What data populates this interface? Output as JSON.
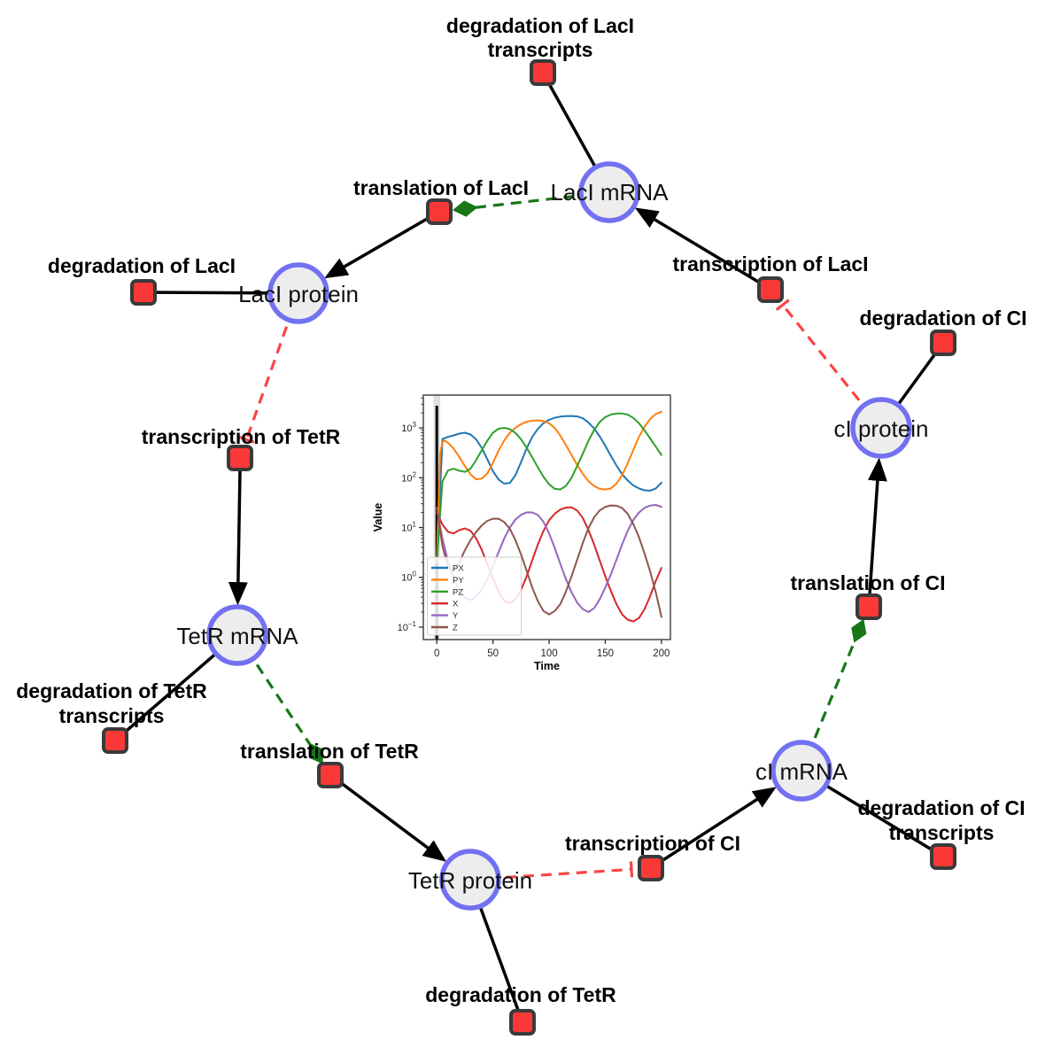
{
  "diagram": {
    "title": "repressilator reaction network",
    "species": [
      {
        "label": "LacI mRNA"
      },
      {
        "label": "LacI protein"
      },
      {
        "label": "cI protein"
      },
      {
        "label": "TetR mRNA"
      },
      {
        "label": "cI mRNA"
      },
      {
        "label": "TetR protein"
      }
    ],
    "reactions": [
      {
        "lines": [
          "degradation of LacI",
          "transcripts"
        ]
      },
      {
        "lines": [
          "translation of LacI"
        ]
      },
      {
        "lines": [
          "degradation of LacI"
        ]
      },
      {
        "lines": [
          "transcription of LacI"
        ]
      },
      {
        "lines": [
          "degradation of CI"
        ]
      },
      {
        "lines": [
          "transcription of TetR"
        ]
      },
      {
        "lines": [
          "translation of CI"
        ]
      },
      {
        "lines": [
          "degradation of TetR",
          "transcripts"
        ]
      },
      {
        "lines": [
          "translation of TetR"
        ]
      },
      {
        "lines": [
          "degradation of CI",
          "transcripts"
        ]
      },
      {
        "lines": [
          "transcription of CI"
        ]
      },
      {
        "lines": [
          "degradation of TetR"
        ]
      }
    ],
    "edges": [
      {
        "source": "LacI mRNA",
        "target": "degradation of LacI transcripts",
        "type": "consumption-line"
      },
      {
        "source": "transcription of LacI",
        "target": "LacI mRNA",
        "type": "production-arrow"
      },
      {
        "source": "LacI mRNA",
        "target": "translation of LacI",
        "type": "modifier-green-dashed"
      },
      {
        "source": "translation of LacI",
        "target": "LacI protein",
        "type": "production-arrow"
      },
      {
        "source": "LacI protein",
        "target": "degradation of LacI",
        "type": "consumption-line"
      },
      {
        "source": "LacI protein",
        "target": "transcription of TetR",
        "type": "inhibition-red-dashed"
      },
      {
        "source": "transcription of TetR",
        "target": "TetR mRNA",
        "type": "production-arrow"
      },
      {
        "source": "TetR mRNA",
        "target": "degradation of TetR transcripts",
        "type": "consumption-line"
      },
      {
        "source": "TetR mRNA",
        "target": "translation of TetR",
        "type": "modifier-green-dashed"
      },
      {
        "source": "translation of TetR",
        "target": "TetR protein",
        "type": "production-arrow"
      },
      {
        "source": "TetR protein",
        "target": "degradation of TetR",
        "type": "consumption-line"
      },
      {
        "source": "TetR protein",
        "target": "transcription of CI",
        "type": "inhibition-red-dashed"
      },
      {
        "source": "transcription of CI",
        "target": "cI mRNA",
        "type": "production-arrow"
      },
      {
        "source": "cI mRNA",
        "target": "degradation of CI transcripts",
        "type": "consumption-line"
      },
      {
        "source": "cI mRNA",
        "target": "translation of CI",
        "type": "modifier-green-dashed"
      },
      {
        "source": "translation of CI",
        "target": "cI protein",
        "type": "production-arrow"
      },
      {
        "source": "cI protein",
        "target": "degradation of CI",
        "type": "consumption-line"
      },
      {
        "source": "cI protein",
        "target": "transcription of LacI",
        "type": "inhibition-red-dashed"
      }
    ],
    "colors": {
      "species_fill": "#ededed",
      "species_stroke": "#7271f2",
      "reaction_fill": "#fb3838",
      "reaction_stroke": "#3a3a3a",
      "edge_black": "#000000",
      "edge_modifier": "#177717",
      "edge_inhibition": "#f84545"
    }
  },
  "chart_data": {
    "type": "line",
    "title": "",
    "xlabel": "Time",
    "ylabel": "Value",
    "x_ticks": [
      0,
      50,
      100,
      150,
      200
    ],
    "y_scale": "log",
    "y_tick_exponents": [
      -1,
      0,
      1,
      2,
      3
    ],
    "xlim": [
      -12,
      208
    ],
    "ylim_log10": [
      -1.25,
      3.66
    ],
    "grid": false,
    "legend_position": "lower-left",
    "event_line_x": 0,
    "series": [
      {
        "name": "PX",
        "color": "#1f77b4",
        "points": [
          [
            0,
            2
          ],
          [
            5,
            600
          ],
          [
            10,
            660
          ],
          [
            15,
            710
          ],
          [
            20,
            770
          ],
          [
            25,
            800
          ],
          [
            30,
            740
          ],
          [
            35,
            590
          ],
          [
            40,
            400
          ],
          [
            45,
            235
          ],
          [
            50,
            135
          ],
          [
            55,
            92
          ],
          [
            60,
            76
          ],
          [
            65,
            79
          ],
          [
            70,
            112
          ],
          [
            75,
            205
          ],
          [
            80,
            390
          ],
          [
            85,
            660
          ],
          [
            90,
            960
          ],
          [
            95,
            1250
          ],
          [
            100,
            1460
          ],
          [
            105,
            1600
          ],
          [
            110,
            1690
          ],
          [
            115,
            1730
          ],
          [
            120,
            1740
          ],
          [
            125,
            1700
          ],
          [
            130,
            1560
          ],
          [
            135,
            1290
          ],
          [
            140,
            980
          ],
          [
            145,
            680
          ],
          [
            150,
            440
          ],
          [
            155,
            275
          ],
          [
            160,
            175
          ],
          [
            165,
            118
          ],
          [
            170,
            88
          ],
          [
            175,
            70
          ],
          [
            180,
            61
          ],
          [
            185,
            56
          ],
          [
            190,
            55
          ],
          [
            195,
            61
          ],
          [
            200,
            80
          ]
        ]
      },
      {
        "name": "PY",
        "color": "#ff7f0e",
        "points": [
          [
            0,
            2
          ],
          [
            3,
            300
          ],
          [
            5,
            520
          ],
          [
            7,
            560
          ],
          [
            10,
            505
          ],
          [
            15,
            385
          ],
          [
            20,
            262
          ],
          [
            25,
            172
          ],
          [
            30,
            117
          ],
          [
            35,
            93
          ],
          [
            40,
            96
          ],
          [
            45,
            122
          ],
          [
            50,
            200
          ],
          [
            55,
            350
          ],
          [
            60,
            560
          ],
          [
            65,
            800
          ],
          [
            70,
            1010
          ],
          [
            75,
            1190
          ],
          [
            80,
            1330
          ],
          [
            85,
            1400
          ],
          [
            90,
            1420
          ],
          [
            95,
            1370
          ],
          [
            100,
            1240
          ],
          [
            105,
            1000
          ],
          [
            110,
            700
          ],
          [
            115,
            450
          ],
          [
            120,
            285
          ],
          [
            125,
            182
          ],
          [
            130,
            120
          ],
          [
            135,
            86
          ],
          [
            140,
            68
          ],
          [
            145,
            60
          ],
          [
            150,
            58
          ],
          [
            155,
            61
          ],
          [
            160,
            76
          ],
          [
            165,
            112
          ],
          [
            170,
            195
          ],
          [
            175,
            360
          ],
          [
            180,
            660
          ],
          [
            185,
            1060
          ],
          [
            190,
            1520
          ],
          [
            195,
            1900
          ],
          [
            200,
            2120
          ]
        ]
      },
      {
        "name": "PZ",
        "color": "#2ca02c",
        "points": [
          [
            0,
            2
          ],
          [
            5,
            85
          ],
          [
            10,
            140
          ],
          [
            15,
            152
          ],
          [
            20,
            138
          ],
          [
            25,
            131
          ],
          [
            30,
            152
          ],
          [
            35,
            225
          ],
          [
            40,
            355
          ],
          [
            45,
            555
          ],
          [
            50,
            800
          ],
          [
            55,
            965
          ],
          [
            60,
            1005
          ],
          [
            65,
            950
          ],
          [
            70,
            795
          ],
          [
            75,
            595
          ],
          [
            80,
            400
          ],
          [
            85,
            258
          ],
          [
            90,
            160
          ],
          [
            95,
            104
          ],
          [
            100,
            74
          ],
          [
            105,
            60
          ],
          [
            110,
            58
          ],
          [
            115,
            69
          ],
          [
            120,
            100
          ],
          [
            125,
            172
          ],
          [
            130,
            305
          ],
          [
            135,
            550
          ],
          [
            140,
            905
          ],
          [
            145,
            1310
          ],
          [
            150,
            1650
          ],
          [
            155,
            1855
          ],
          [
            160,
            1950
          ],
          [
            165,
            1955
          ],
          [
            170,
            1845
          ],
          [
            175,
            1590
          ],
          [
            180,
            1240
          ],
          [
            185,
            895
          ],
          [
            190,
            615
          ],
          [
            195,
            420
          ],
          [
            200,
            285
          ]
        ]
      },
      {
        "name": "X",
        "color": "#d62728",
        "points": [
          [
            0,
            20
          ],
          [
            5,
            11.5
          ],
          [
            10,
            8.2
          ],
          [
            15,
            7.6
          ],
          [
            20,
            8.9
          ],
          [
            25,
            9.6
          ],
          [
            30,
            8.6
          ],
          [
            35,
            6.1
          ],
          [
            40,
            3.6
          ],
          [
            45,
            1.85
          ],
          [
            50,
            0.95
          ],
          [
            55,
            0.52
          ],
          [
            60,
            0.34
          ],
          [
            65,
            0.3
          ],
          [
            70,
            0.36
          ],
          [
            75,
            0.56
          ],
          [
            80,
            1.05
          ],
          [
            85,
            2.2
          ],
          [
            90,
            4.6
          ],
          [
            95,
            8.6
          ],
          [
            100,
            14
          ],
          [
            105,
            19
          ],
          [
            110,
            23
          ],
          [
            115,
            25.2
          ],
          [
            120,
            25.4
          ],
          [
            125,
            22
          ],
          [
            130,
            15.5
          ],
          [
            135,
            9
          ],
          [
            140,
            4.6
          ],
          [
            145,
            2.2
          ],
          [
            150,
            1.05
          ],
          [
            155,
            0.53
          ],
          [
            160,
            0.29
          ],
          [
            165,
            0.18
          ],
          [
            170,
            0.141
          ],
          [
            175,
            0.13
          ],
          [
            180,
            0.152
          ],
          [
            185,
            0.23
          ],
          [
            190,
            0.42
          ],
          [
            195,
            0.85
          ],
          [
            200,
            1.55
          ]
        ]
      },
      {
        "name": "Y",
        "color": "#9467bd",
        "points": [
          [
            0,
            25
          ],
          [
            5,
            6
          ],
          [
            10,
            2.1
          ],
          [
            15,
            0.95
          ],
          [
            20,
            0.52
          ],
          [
            25,
            0.39
          ],
          [
            30,
            0.35
          ],
          [
            35,
            0.41
          ],
          [
            40,
            0.56
          ],
          [
            45,
            0.92
          ],
          [
            50,
            1.7
          ],
          [
            55,
            3.2
          ],
          [
            60,
            6
          ],
          [
            65,
            10
          ],
          [
            70,
            14.5
          ],
          [
            75,
            18
          ],
          [
            80,
            20.2
          ],
          [
            85,
            20.1
          ],
          [
            90,
            17.8
          ],
          [
            95,
            13
          ],
          [
            100,
            7.6
          ],
          [
            105,
            3.9
          ],
          [
            110,
            1.85
          ],
          [
            115,
            0.92
          ],
          [
            120,
            0.5
          ],
          [
            125,
            0.31
          ],
          [
            130,
            0.23
          ],
          [
            135,
            0.2
          ],
          [
            140,
            0.24
          ],
          [
            145,
            0.36
          ],
          [
            150,
            0.62
          ],
          [
            155,
            1.15
          ],
          [
            160,
            2.25
          ],
          [
            165,
            4.6
          ],
          [
            170,
            8.6
          ],
          [
            175,
            14.2
          ],
          [
            180,
            20
          ],
          [
            185,
            25
          ],
          [
            190,
            27.6
          ],
          [
            195,
            28.4
          ],
          [
            200,
            26
          ]
        ]
      },
      {
        "name": "Z",
        "color": "#8c564b",
        "points": [
          [
            0,
            25
          ],
          [
            5,
            4.2
          ],
          [
            10,
            1.6
          ],
          [
            15,
            1.35
          ],
          [
            20,
            2.0
          ],
          [
            25,
            3.5
          ],
          [
            30,
            5.6
          ],
          [
            35,
            8.1
          ],
          [
            40,
            11
          ],
          [
            45,
            13.6
          ],
          [
            50,
            15.1
          ],
          [
            55,
            15
          ],
          [
            60,
            12.9
          ],
          [
            65,
            9.4
          ],
          [
            70,
            5.6
          ],
          [
            75,
            2.9
          ],
          [
            80,
            1.35
          ],
          [
            85,
            0.62
          ],
          [
            90,
            0.33
          ],
          [
            95,
            0.21
          ],
          [
            100,
            0.18
          ],
          [
            105,
            0.21
          ],
          [
            110,
            0.29
          ],
          [
            115,
            0.52
          ],
          [
            120,
            1.05
          ],
          [
            125,
            2.25
          ],
          [
            130,
            4.9
          ],
          [
            135,
            9.6
          ],
          [
            140,
            16
          ],
          [
            145,
            22
          ],
          [
            150,
            26
          ],
          [
            155,
            27.8
          ],
          [
            160,
            27.4
          ],
          [
            165,
            24.6
          ],
          [
            170,
            18.8
          ],
          [
            175,
            11.8
          ],
          [
            180,
            6.4
          ],
          [
            185,
            3.0
          ],
          [
            190,
            1.3
          ],
          [
            195,
            0.5
          ],
          [
            200,
            0.16
          ]
        ]
      }
    ]
  }
}
